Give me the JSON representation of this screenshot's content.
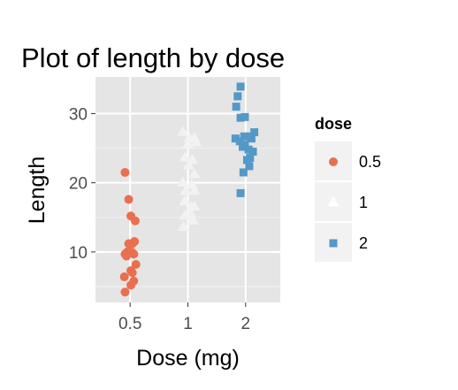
{
  "chart_data": {
    "type": "scatter",
    "title": "Plot of length  by dose",
    "xlabel": "Dose (mg)",
    "ylabel": "Length",
    "categories": [
      "0.5",
      "1",
      "2"
    ],
    "ylim": [
      2.7,
      35.3
    ],
    "yticks": [
      10,
      20,
      30
    ],
    "grid": true,
    "legend": {
      "title": "dose",
      "placement": "right"
    },
    "series": [
      {
        "name": "0.5",
        "color": "#E8704F",
        "shape": "circle",
        "points": [
          {
            "x": 0.43,
            "y": 21.5
          },
          {
            "x": 0.48,
            "y": 17.6
          },
          {
            "x": 0.51,
            "y": 15.2
          },
          {
            "x": 0.57,
            "y": 14.5
          },
          {
            "x": 0.56,
            "y": 11.5
          },
          {
            "x": 0.48,
            "y": 11.2
          },
          {
            "x": 0.53,
            "y": 11.2
          },
          {
            "x": 0.52,
            "y": 10.0
          },
          {
            "x": 0.46,
            "y": 10.0
          },
          {
            "x": 0.43,
            "y": 9.7
          },
          {
            "x": 0.45,
            "y": 9.4
          },
          {
            "x": 0.55,
            "y": 9.7
          },
          {
            "x": 0.58,
            "y": 8.2
          },
          {
            "x": 0.51,
            "y": 7.3
          },
          {
            "x": 0.42,
            "y": 6.4
          },
          {
            "x": 0.55,
            "y": 5.8
          },
          {
            "x": 0.51,
            "y": 5.2
          },
          {
            "x": 0.43,
            "y": 4.2
          },
          {
            "x": 0.53,
            "y": 7.0
          },
          {
            "x": 0.48,
            "y": 10.0
          }
        ]
      },
      {
        "name": "1",
        "color": "#F2F2F2",
        "shape": "triangle",
        "points": [
          {
            "x": 0.93,
            "y": 27.3
          },
          {
            "x": 1.02,
            "y": 26.4
          },
          {
            "x": 1.09,
            "y": 26.4
          },
          {
            "x": 1.11,
            "y": 25.8
          },
          {
            "x": 0.96,
            "y": 23.6
          },
          {
            "x": 1.06,
            "y": 23.3
          },
          {
            "x": 1.01,
            "y": 22.5
          },
          {
            "x": 1.09,
            "y": 21.2
          },
          {
            "x": 0.93,
            "y": 20.0
          },
          {
            "x": 1.05,
            "y": 19.7
          },
          {
            "x": 0.97,
            "y": 18.8
          },
          {
            "x": 1.09,
            "y": 18.8
          },
          {
            "x": 0.96,
            "y": 17.3
          },
          {
            "x": 1.05,
            "y": 16.5
          },
          {
            "x": 1.09,
            "y": 16.5
          },
          {
            "x": 1.04,
            "y": 15.5
          },
          {
            "x": 0.96,
            "y": 15.2
          },
          {
            "x": 1.07,
            "y": 14.5
          },
          {
            "x": 0.94,
            "y": 13.6
          },
          {
            "x": 1.0,
            "y": 25.5
          }
        ]
      },
      {
        "name": "2",
        "color": "#5498C8",
        "shape": "square",
        "points": [
          {
            "x": 1.93,
            "y": 33.9
          },
          {
            "x": 1.89,
            "y": 32.5
          },
          {
            "x": 1.87,
            "y": 31.0
          },
          {
            "x": 1.99,
            "y": 29.5
          },
          {
            "x": 1.93,
            "y": 29.4
          },
          {
            "x": 2.12,
            "y": 27.3
          },
          {
            "x": 1.98,
            "y": 26.7
          },
          {
            "x": 2.06,
            "y": 26.7
          },
          {
            "x": 1.86,
            "y": 26.4
          },
          {
            "x": 1.92,
            "y": 26.0
          },
          {
            "x": 2.08,
            "y": 26.4
          },
          {
            "x": 1.99,
            "y": 25.5
          },
          {
            "x": 1.96,
            "y": 25.2
          },
          {
            "x": 2.04,
            "y": 24.8
          },
          {
            "x": 2.1,
            "y": 24.5
          },
          {
            "x": 2.06,
            "y": 23.6
          },
          {
            "x": 2.02,
            "y": 23.3
          },
          {
            "x": 2.05,
            "y": 22.4
          },
          {
            "x": 1.97,
            "y": 21.5
          },
          {
            "x": 1.93,
            "y": 18.5
          }
        ]
      }
    ]
  }
}
